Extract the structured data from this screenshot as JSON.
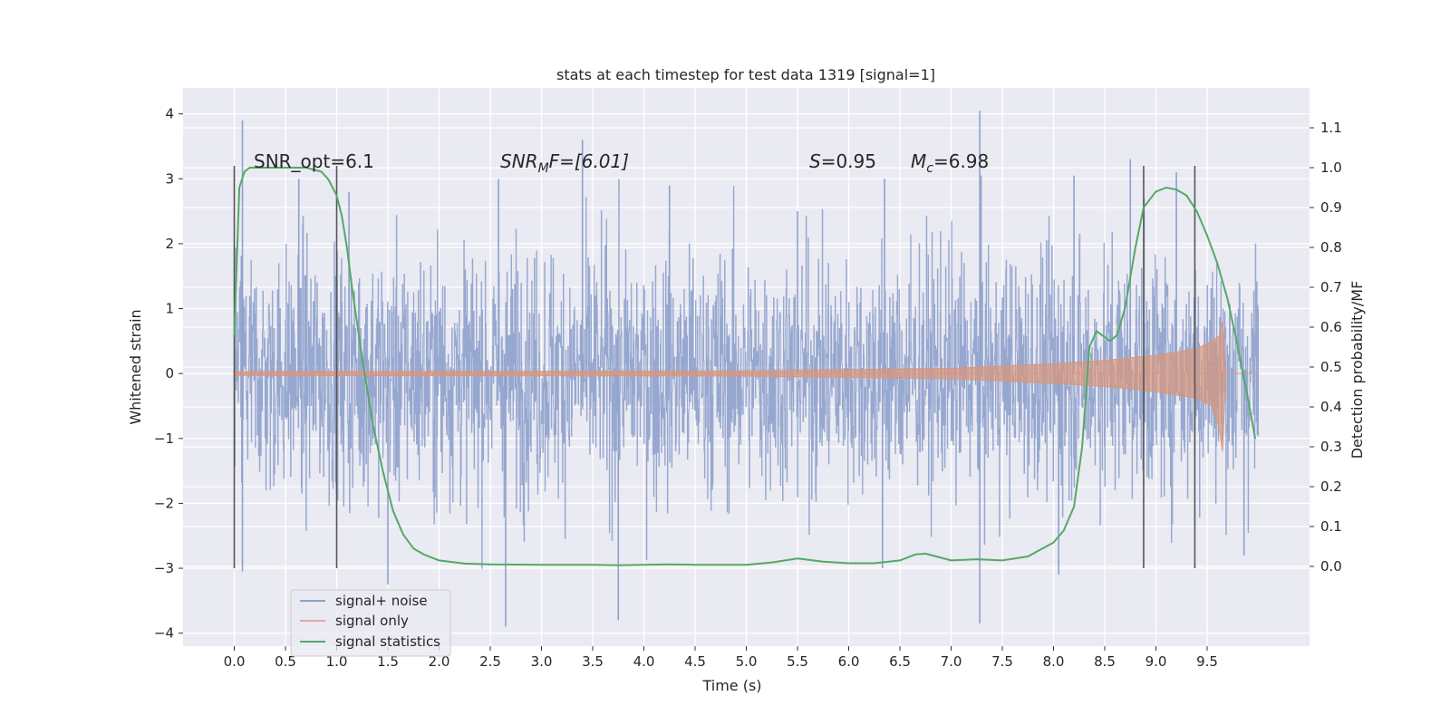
{
  "chart_data": {
    "type": "line",
    "title": "stats at each timestep for test data 1319 [signal=1]",
    "xlabel": "Time (s)",
    "ylabel_left": "Whitened strain",
    "ylabel_right": "Detection probability/MF",
    "xlim": [
      -0.5,
      10.5
    ],
    "ylim_left": [
      -4.2,
      4.4
    ],
    "ylim_right": [
      -0.2,
      1.2
    ],
    "x_ticks": [
      "0.0",
      "0.5",
      "1.0",
      "1.5",
      "2.0",
      "2.5",
      "3.0",
      "3.5",
      "4.0",
      "4.5",
      "5.0",
      "5.5",
      "6.0",
      "6.5",
      "7.0",
      "7.5",
      "8.0",
      "8.5",
      "9.0",
      "9.5"
    ],
    "y_left_ticks": [
      "−4",
      "−3",
      "−2",
      "−1",
      "0",
      "1",
      "2",
      "3",
      "4"
    ],
    "y_right_ticks": [
      "0.0",
      "0.1",
      "0.2",
      "0.3",
      "0.4",
      "0.5",
      "0.6",
      "0.7",
      "0.8",
      "0.9",
      "1.0",
      "1.1"
    ],
    "grid": true,
    "legend_position": "lower-left",
    "annotations": {
      "snr_opt": "SNR_opt=6.1",
      "snr_mf_base": "SNR",
      "snr_mf_sub": "M",
      "snr_mf_rest": "F=[6.01]",
      "s_label": "S",
      "s_value": "=0.95",
      "mc_base": "M",
      "mc_sub": "c",
      "mc_value": "=6.98"
    },
    "vertical_lines_x": [
      0.0,
      1.0,
      8.88,
      9.38
    ],
    "series": [
      {
        "name": "signal+ noise",
        "axis": "left",
        "color": "#8ea1cc",
        "x_range": [
          0.0,
          10.0
        ],
        "y_range_approx": [
          -3.9,
          4.05
        ],
        "spikes": [
          [
            0.08,
            3.9
          ],
          [
            0.63,
            3.0
          ],
          [
            1.12,
            2.8
          ],
          [
            2.58,
            3.0
          ],
          [
            3.4,
            3.6
          ],
          [
            4.25,
            2.9
          ],
          [
            5.5,
            2.5
          ],
          [
            6.35,
            3.0
          ],
          [
            7.28,
            4.05
          ],
          [
            8.2,
            3.05
          ],
          [
            8.75,
            3.3
          ],
          [
            9.2,
            3.1
          ],
          [
            0.08,
            -3.05
          ],
          [
            1.5,
            -3.25
          ],
          [
            2.65,
            -3.9
          ],
          [
            3.75,
            -3.8
          ],
          [
            6.33,
            -3.0
          ],
          [
            7.28,
            -3.85
          ],
          [
            8.05,
            -3.1
          ],
          [
            9.86,
            -2.8
          ]
        ]
      },
      {
        "name": "signal only",
        "axis": "left",
        "color": "#dd8452",
        "x_range": [
          0.0,
          9.7
        ],
        "envelope": [
          [
            0.0,
            0.03
          ],
          [
            5.0,
            0.04
          ],
          [
            6.0,
            0.06
          ],
          [
            7.0,
            0.08
          ],
          [
            8.0,
            0.15
          ],
          [
            8.5,
            0.2
          ],
          [
            9.0,
            0.28
          ],
          [
            9.4,
            0.38
          ],
          [
            9.55,
            0.5
          ],
          [
            9.62,
            0.58
          ],
          [
            9.65,
            0.8
          ],
          [
            9.68,
            0.1
          ]
        ]
      },
      {
        "name": "signal statistics",
        "axis": "right",
        "color": "#55a868",
        "x": [
          0.0,
          0.05,
          0.1,
          0.15,
          0.2,
          0.3,
          0.5,
          0.7,
          0.85,
          0.92,
          1.0,
          1.05,
          1.1,
          1.15,
          1.25,
          1.35,
          1.45,
          1.55,
          1.65,
          1.75,
          1.85,
          2.0,
          2.25,
          2.5,
          3.0,
          3.5,
          3.75,
          4.0,
          4.25,
          4.5,
          5.0,
          5.25,
          5.5,
          5.75,
          6.0,
          6.25,
          6.5,
          6.65,
          6.75,
          7.0,
          7.25,
          7.5,
          7.75,
          8.0,
          8.1,
          8.2,
          8.28,
          8.35,
          8.42,
          8.5,
          8.55,
          8.62,
          8.7,
          8.8,
          8.88,
          9.0,
          9.1,
          9.2,
          9.3,
          9.4,
          9.5,
          9.6,
          9.7,
          9.8,
          9.9,
          9.97
        ],
        "y": [
          0.58,
          0.95,
          0.99,
          1.0,
          1.0,
          1.0,
          1.0,
          1.0,
          0.99,
          0.97,
          0.93,
          0.88,
          0.8,
          0.7,
          0.52,
          0.36,
          0.24,
          0.14,
          0.08,
          0.045,
          0.03,
          0.015,
          0.007,
          0.005,
          0.004,
          0.004,
          0.003,
          0.004,
          0.005,
          0.004,
          0.004,
          0.01,
          0.02,
          0.012,
          0.008,
          0.008,
          0.015,
          0.03,
          0.032,
          0.015,
          0.018,
          0.015,
          0.025,
          0.06,
          0.09,
          0.15,
          0.3,
          0.55,
          0.59,
          0.575,
          0.565,
          0.58,
          0.65,
          0.8,
          0.9,
          0.94,
          0.95,
          0.945,
          0.93,
          0.89,
          0.83,
          0.76,
          0.67,
          0.55,
          0.42,
          0.32
        ]
      }
    ]
  }
}
